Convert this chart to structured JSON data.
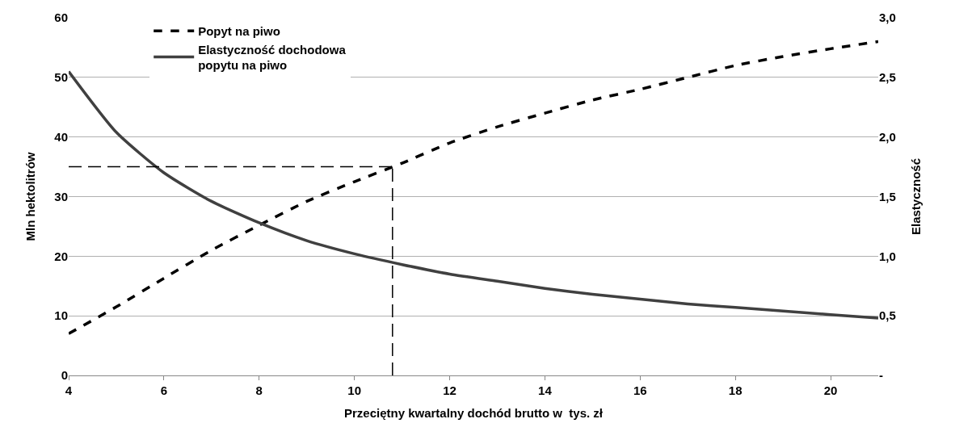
{
  "chart_data": {
    "type": "line",
    "xlabel": "Przeciętny kwartalny dochód brutto w  tys. zł",
    "ylabel": "Mln hektolitrów",
    "y2label": "Elastyczność",
    "x": [
      4,
      5,
      6,
      7,
      8,
      9,
      10,
      11,
      12,
      13,
      14,
      15,
      16,
      17,
      18,
      19,
      20,
      21
    ],
    "series": [
      {
        "name": "Popyt na piwo",
        "color": "#000000",
        "line_style": "dashed",
        "values": [
          7,
          11.5,
          16.3,
          21,
          25.2,
          29.2,
          32.5,
          35.6,
          39,
          41.7,
          44,
          46.2,
          48,
          50,
          52,
          53.5,
          54.8,
          56
        ]
      },
      {
        "name": "Elastyczność dochodowa\npopytu na piwo",
        "color": "#404040",
        "line_style": "solid",
        "axis": "y2",
        "values": [
          2.55,
          2.04,
          1.7,
          1.46,
          1.28,
          1.13,
          1.02,
          0.93,
          0.85,
          0.79,
          0.73,
          0.68,
          0.64,
          0.6,
          0.57,
          0.54,
          0.51,
          0.48
        ]
      }
    ],
    "xlim": [
      4,
      21
    ],
    "xticks": [
      4,
      6,
      8,
      10,
      12,
      14,
      16,
      18,
      20
    ],
    "ylim": [
      0,
      60
    ],
    "yticks": [
      0,
      10,
      20,
      30,
      40,
      50,
      60
    ],
    "y2lim": [
      0,
      3
    ],
    "y2ticks": [
      {
        "value": 0,
        "label": "-"
      },
      {
        "value": 0.5,
        "label": "0,5"
      },
      {
        "value": 1,
        "label": "1,0"
      },
      {
        "value": 1.5,
        "label": "1,5"
      },
      {
        "value": 2,
        "label": "2,0"
      },
      {
        "value": 2.5,
        "label": "2,5"
      },
      {
        "value": 3,
        "label": "3,0"
      }
    ],
    "ref_lines": [
      {
        "axis": "y",
        "value": 35,
        "color": "#000000",
        "line_style": "dashed"
      },
      {
        "axis": "x",
        "value": 10.8,
        "color": "#000000",
        "line_style": "dashed"
      }
    ],
    "grid": "y",
    "legend": "top left",
    "marker": "none"
  }
}
